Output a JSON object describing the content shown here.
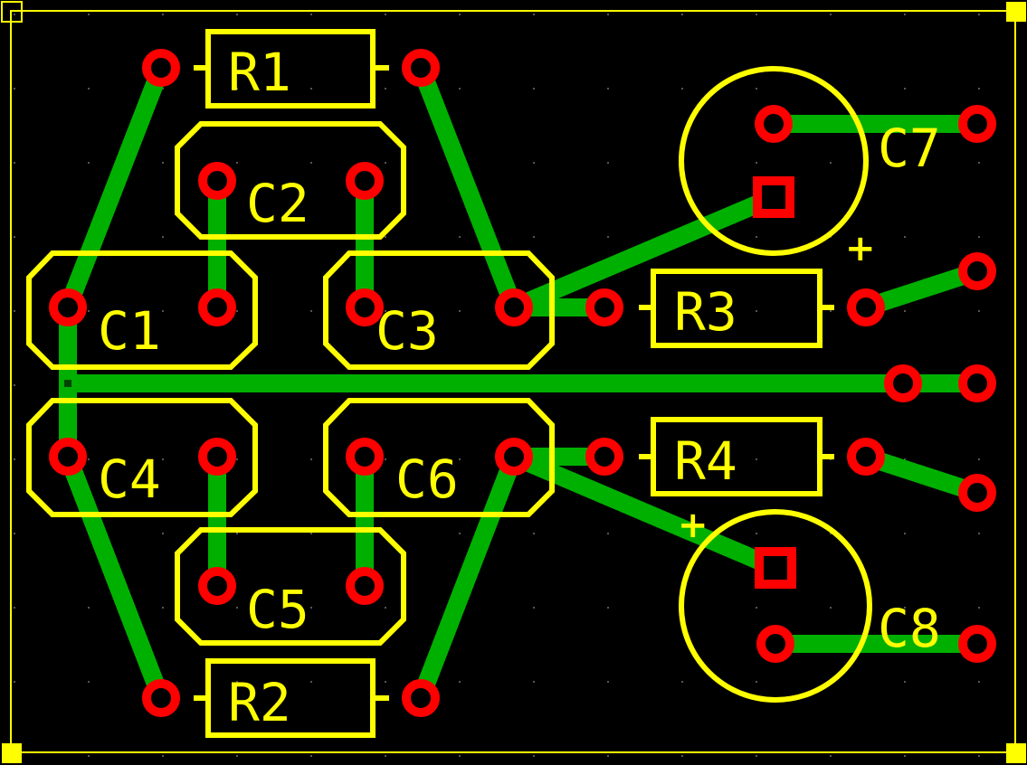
{
  "labels": {
    "r1": "R1",
    "r2": "R2",
    "r3": "R3",
    "r4": "R4",
    "c1": "C1",
    "c2": "C2",
    "c3": "C3",
    "c4": "C4",
    "c5": "C5",
    "c6": "C6",
    "c7": "C7",
    "c8": "C8"
  },
  "polarity": {
    "c7": "+",
    "c8": "+"
  },
  "colors": {
    "background": "#000000",
    "trace": "#00b000",
    "pad": "#ff0000",
    "silkscreen": "#ffff00"
  }
}
